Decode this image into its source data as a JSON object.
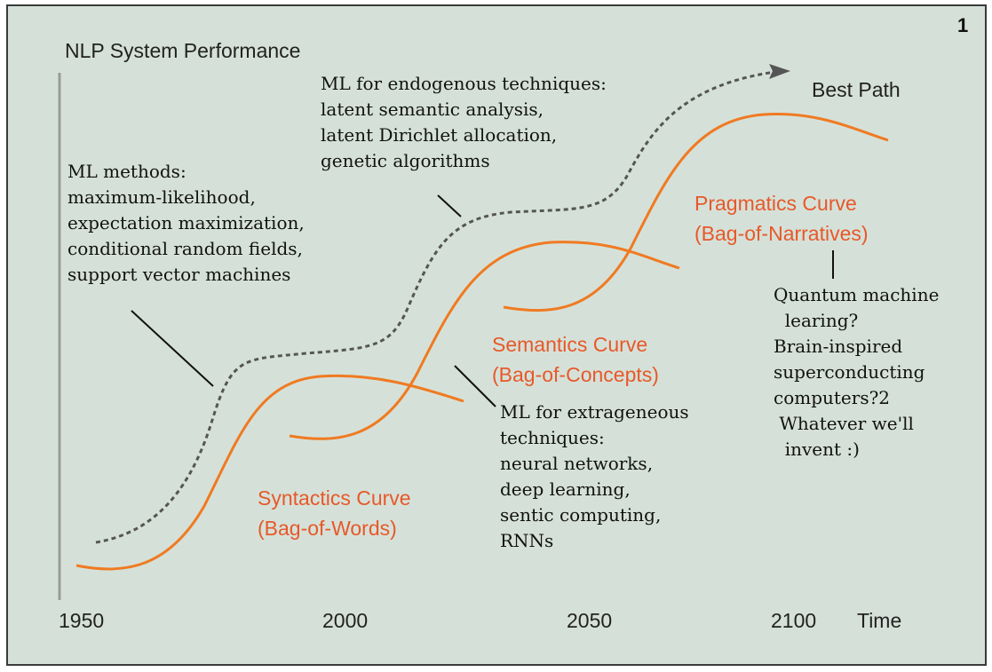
{
  "page_number": "1",
  "y_axis_title": "NLP System Performance",
  "best_path_label": "Best Path",
  "x_axis": {
    "ticks": [
      "1950",
      "2000",
      "2050",
      "2100"
    ],
    "label": "Time"
  },
  "curves": {
    "syntactics": {
      "title": "Syntactics Curve",
      "subtitle": "(Bag-of-Words)"
    },
    "semantics": {
      "title": "Semantics Curve",
      "subtitle": "(Bag-of-Concepts)"
    },
    "pragmatics": {
      "title": "Pragmatics Curve",
      "subtitle": "(Bag-of-Narratives)"
    }
  },
  "annotations": {
    "ml_methods": [
      "ML methods:",
      "maximum-likelihood,",
      "expectation maximization,",
      "conditional random fields,",
      "support vector machines"
    ],
    "ml_endogenous": [
      "ML for endogenous techniques:",
      "latent semantic analysis,",
      "latent Dirichlet allocation,",
      "genetic algorithms"
    ],
    "ml_extrageneous": [
      "ML for extrageneous",
      "techniques:",
      "neural networks,",
      "deep learning,",
      "sentic computing,",
      "RNNs"
    ],
    "future": [
      "Quantum machine",
      "  learing?",
      "Brain-inspired",
      "superconducting",
      "computers?2",
      " Whatever we'll",
      "  invent :)"
    ]
  },
  "colors": {
    "background": "#d5e1d8",
    "curve": "#f07a22",
    "best_path": "#555555",
    "label_orange": "#e8582a"
  }
}
